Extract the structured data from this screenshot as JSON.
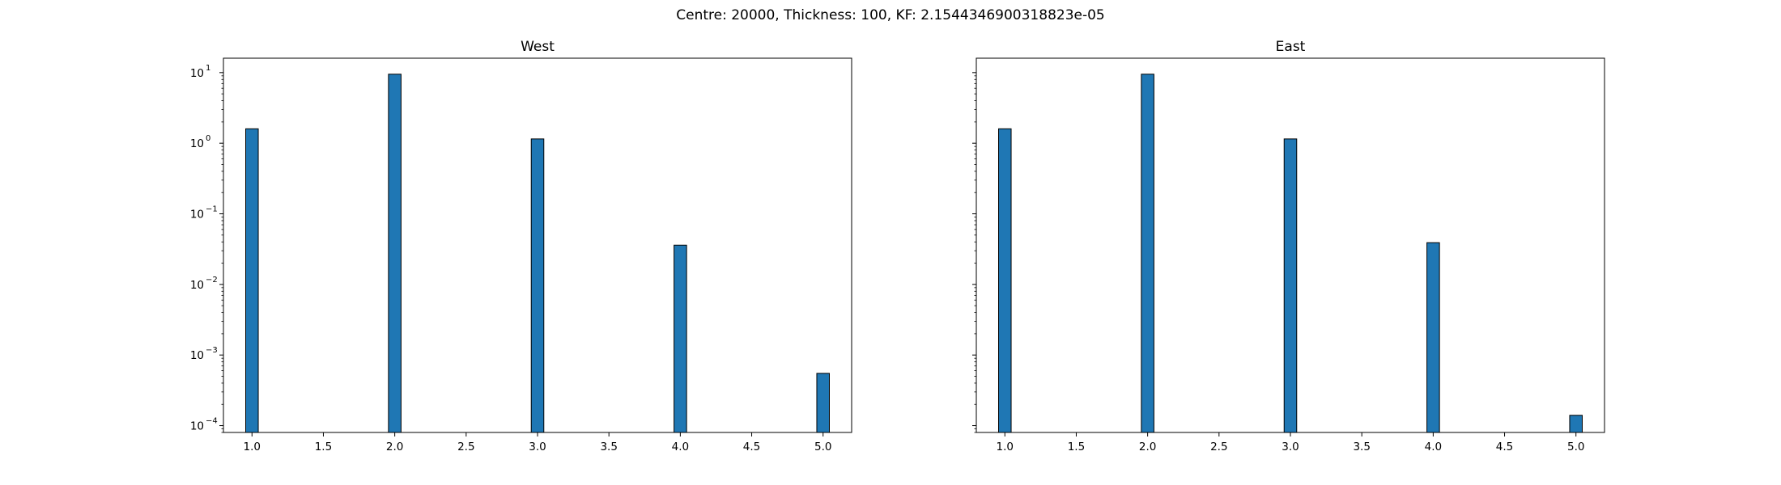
{
  "figure": {
    "suptitle": "Centre: 20000, Thickness: 100, KF: 2.1544346900318823e-05"
  },
  "chart_data": [
    {
      "type": "bar",
      "title": "West",
      "xlabel": "",
      "ylabel": "",
      "yscale": "log",
      "xlim": [
        0.8,
        5.2
      ],
      "ylim": [
        8e-05,
        16
      ],
      "x": [
        1.0,
        2.0,
        3.0,
        4.0,
        5.0
      ],
      "values": [
        1.6,
        9.5,
        1.15,
        0.036,
        0.00055
      ],
      "bar_color": "#1f77b4",
      "edge_color": "#000000",
      "x_ticks": [
        1.0,
        1.5,
        2.0,
        2.5,
        3.0,
        3.5,
        4.0,
        4.5,
        5.0
      ],
      "x_tick_labels": [
        "1.0",
        "1.5",
        "2.0",
        "2.5",
        "3.0",
        "3.5",
        "4.0",
        "4.5",
        "5.0"
      ],
      "y_tick_exponents": [
        -4,
        -3,
        -2,
        -1,
        0,
        1
      ],
      "y_tick_labels_shown": true,
      "grid": false
    },
    {
      "type": "bar",
      "title": "East",
      "xlabel": "",
      "ylabel": "",
      "yscale": "log",
      "xlim": [
        0.8,
        5.2
      ],
      "ylim": [
        8e-05,
        16
      ],
      "x": [
        1.0,
        2.0,
        3.0,
        4.0,
        5.0
      ],
      "values": [
        1.6,
        9.5,
        1.15,
        0.039,
        0.00014
      ],
      "bar_color": "#1f77b4",
      "edge_color": "#000000",
      "x_ticks": [
        1.0,
        1.5,
        2.0,
        2.5,
        3.0,
        3.5,
        4.0,
        4.5,
        5.0
      ],
      "x_tick_labels": [
        "1.0",
        "1.5",
        "2.0",
        "2.5",
        "3.0",
        "3.5",
        "4.0",
        "4.5",
        "5.0"
      ],
      "y_tick_exponents": [
        -4,
        -3,
        -2,
        -1,
        0,
        1
      ],
      "y_tick_labels_shown": false,
      "grid": false
    }
  ]
}
